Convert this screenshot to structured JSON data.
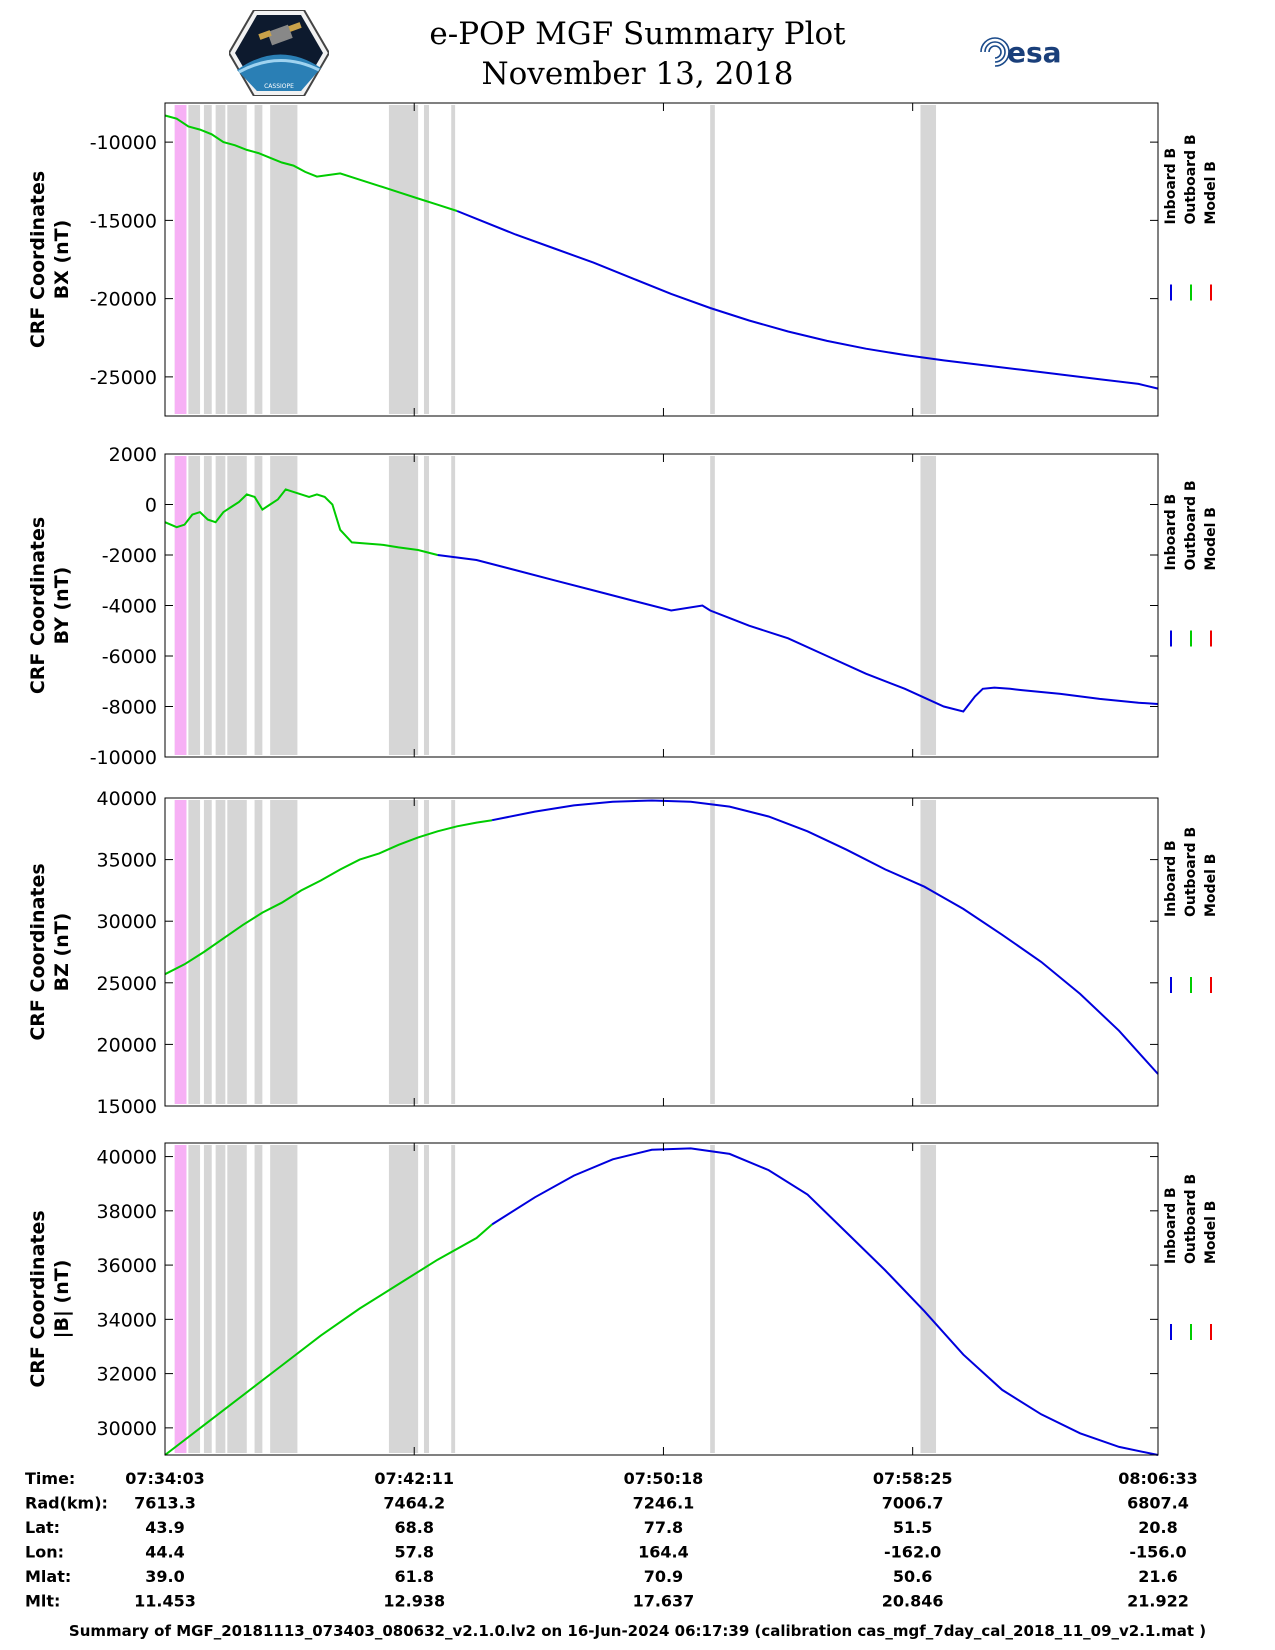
{
  "header": {
    "title": "e-POP MGF Summary Plot",
    "date": "November 13, 2018",
    "logo_left_text": "CASSIOPE",
    "logo_right_text": "esa"
  },
  "colors": {
    "inboard": "#0000dd",
    "outboard": "#00cc00",
    "model": "#ee0000",
    "gap": "#d6d6d6",
    "highlight": "#f7b0f5"
  },
  "chart_data": [
    {
      "type": "line",
      "title": "",
      "ylabel_line1": "CRF Coordinates",
      "ylabel_line2": "BX (nT)",
      "ylim": [
        -27500,
        -7500
      ],
      "yticks": [
        -25000,
        -20000,
        -15000,
        -10000
      ],
      "ytick_labels": [
        "-25000",
        "-20000",
        "-15000",
        "-10000"
      ],
      "legend": [
        "Inboard B",
        "Outboard B",
        "Model B"
      ],
      "series": [
        {
          "name": "Outboard B",
          "color": "outboard",
          "x": [
            0,
            0.3,
            0.6,
            0.9,
            1.2,
            1.5,
            1.8,
            2.1,
            2.4,
            2.7,
            3.0,
            3.3,
            3.6,
            3.9,
            4.2,
            4.5,
            5.0,
            5.5,
            6.0,
            6.5,
            7.0,
            7.5
          ],
          "y": [
            -8300,
            -8500,
            -9000,
            -9200,
            -9500,
            -10000,
            -10200,
            -10500,
            -10700,
            -11000,
            -11300,
            -11500,
            -11900,
            -12200,
            -12100,
            -12000,
            -12400,
            -12800,
            -13200,
            -13600,
            -14000,
            -14400
          ]
        },
        {
          "name": "Inboard B",
          "color": "inboard",
          "x": [
            7.5,
            8.0,
            9.0,
            10.0,
            11.0,
            12.0,
            13.0,
            14.0,
            15.0,
            16.0,
            17.0,
            18.0,
            19.0,
            20.0,
            21.0,
            22.0,
            23.0,
            24.0,
            25.0,
            25.5
          ],
          "y": [
            -14400,
            -14900,
            -15900,
            -16800,
            -17700,
            -18700,
            -19700,
            -20600,
            -21400,
            -22100,
            -22700,
            -23200,
            -23600,
            -23950,
            -24250,
            -24550,
            -24850,
            -25150,
            -25450,
            -25750
          ]
        }
      ]
    },
    {
      "type": "line",
      "title": "",
      "ylabel_line1": "CRF Coordinates",
      "ylabel_line2": "BY (nT)",
      "ylim": [
        -10000,
        2000
      ],
      "yticks": [
        -10000,
        -8000,
        -6000,
        -4000,
        -2000,
        0,
        2000
      ],
      "ytick_labels": [
        "-10000",
        "-8000",
        "-6000",
        "-4000",
        "-2000",
        "0",
        "2000"
      ],
      "legend": [
        "Inboard B",
        "Outboard B",
        "Model B"
      ],
      "series": [
        {
          "name": "Outboard B",
          "color": "outboard",
          "x": [
            0,
            0.3,
            0.5,
            0.7,
            0.9,
            1.1,
            1.3,
            1.5,
            1.7,
            1.9,
            2.1,
            2.3,
            2.5,
            2.7,
            2.9,
            3.1,
            3.3,
            3.5,
            3.7,
            3.9,
            4.1,
            4.3,
            4.5,
            4.8,
            5.2,
            5.6,
            6.0,
            6.5,
            7.0
          ],
          "y": [
            -700,
            -900,
            -800,
            -400,
            -300,
            -600,
            -700,
            -300,
            -100,
            100,
            400,
            300,
            -200,
            0,
            200,
            600,
            500,
            400,
            300,
            400,
            300,
            0,
            -1000,
            -1500,
            -1550,
            -1600,
            -1700,
            -1800,
            -2000
          ]
        },
        {
          "name": "Inboard B",
          "color": "inboard",
          "x": [
            7.0,
            8.0,
            9.0,
            10.0,
            11.0,
            12.0,
            13.0,
            13.8,
            14.0,
            14.5,
            15.0,
            16.0,
            17.0,
            18.0,
            19.0,
            20.0,
            20.5,
            20.8,
            21.0,
            21.3,
            21.7,
            22.0,
            23.0,
            24.0,
            25.0,
            25.5
          ],
          "y": [
            -2000,
            -2200,
            -2600,
            -3000,
            -3400,
            -3800,
            -4200,
            -4000,
            -4200,
            -4500,
            -4800,
            -5300,
            -6000,
            -6700,
            -7300,
            -8000,
            -8200,
            -7600,
            -7300,
            -7250,
            -7300,
            -7350,
            -7500,
            -7700,
            -7850,
            -7900
          ]
        }
      ]
    },
    {
      "type": "line",
      "title": "",
      "ylabel_line1": "CRF Coordinates",
      "ylabel_line2": "BZ (nT)",
      "ylim": [
        15000,
        40000
      ],
      "yticks": [
        15000,
        20000,
        25000,
        30000,
        35000,
        40000
      ],
      "ytick_labels": [
        "15000",
        "20000",
        "25000",
        "30000",
        "35000",
        "40000"
      ],
      "legend": [
        "Inboard B",
        "Outboard B",
        "Model B"
      ],
      "series": [
        {
          "name": "Outboard B",
          "color": "outboard",
          "x": [
            0,
            0.5,
            1.0,
            1.5,
            2.0,
            2.5,
            3.0,
            3.5,
            4.0,
            4.5,
            5.0,
            5.5,
            6.0,
            6.5,
            7.0,
            7.5,
            8.0,
            8.4
          ],
          "y": [
            25700,
            26500,
            27500,
            28600,
            29700,
            30700,
            31500,
            32500,
            33300,
            34200,
            35000,
            35500,
            36200,
            36800,
            37300,
            37700,
            38000,
            38200
          ]
        },
        {
          "name": "Inboard B",
          "color": "inboard",
          "x": [
            8.4,
            9.5,
            10.5,
            11.5,
            12.5,
            13.5,
            14.5,
            15.5,
            16.5,
            17.5,
            18.5,
            19.5,
            20.5,
            21.5,
            22.5,
            23.5,
            24.5,
            25.5
          ],
          "y": [
            38200,
            38900,
            39400,
            39700,
            39800,
            39700,
            39300,
            38500,
            37300,
            35800,
            34200,
            32800,
            31000,
            28900,
            26700,
            24100,
            21100,
            17600
          ]
        }
      ]
    },
    {
      "type": "line",
      "title": "",
      "ylabel_line1": "CRF Coordinates",
      "ylabel_line2": "|B| (nT)",
      "ylim": [
        29000,
        40500
      ],
      "yticks": [
        30000,
        32000,
        34000,
        36000,
        38000,
        40000
      ],
      "ytick_labels": [
        "30000",
        "32000",
        "34000",
        "36000",
        "38000",
        "40000"
      ],
      "legend": [
        "Inboard B",
        "Outboard B",
        "Model B"
      ],
      "series": [
        {
          "name": "Outboard B",
          "color": "outboard",
          "x": [
            0,
            1.0,
            2.0,
            3.0,
            4.0,
            5.0,
            6.0,
            7.0,
            8.0,
            8.4
          ],
          "y": [
            29000,
            30100,
            31200,
            32300,
            33400,
            34400,
            35300,
            36200,
            37000,
            37500
          ]
        },
        {
          "name": "Inboard B",
          "color": "inboard",
          "x": [
            8.4,
            9.5,
            10.5,
            11.5,
            12.5,
            13.5,
            14.5,
            15.5,
            16.5,
            17.5,
            18.5,
            19.5,
            20.5,
            21.5,
            22.5,
            23.5,
            24.5,
            25.5
          ],
          "y": [
            37500,
            38500,
            39300,
            39900,
            40250,
            40300,
            40100,
            39500,
            38600,
            37200,
            35800,
            34300,
            32700,
            31400,
            30500,
            29800,
            29300,
            29000
          ]
        }
      ]
    }
  ],
  "x_axis": {
    "xlim": [
      0,
      25.5
    ],
    "tick_minutes": [
      0,
      6.4,
      12.8,
      19.2,
      25.5
    ],
    "gaps": [
      [
        0.25,
        0.55
      ],
      [
        0.6,
        0.9
      ],
      [
        1.0,
        1.2
      ],
      [
        1.3,
        1.55
      ],
      [
        1.6,
        2.1
      ],
      [
        2.3,
        2.5
      ],
      [
        2.7,
        3.4
      ],
      [
        5.75,
        6.5
      ],
      [
        6.65,
        6.78
      ],
      [
        7.35,
        7.45
      ],
      [
        14.0,
        14.12
      ],
      [
        19.4,
        19.8
      ]
    ],
    "highlight": [
      [
        0.25,
        0.55
      ]
    ]
  },
  "info_table": {
    "row_labels": [
      "Time:",
      "Rad(km):",
      "Lat:",
      "Lon:",
      "Mlat:",
      "Mlt:"
    ],
    "columns": [
      [
        "07:34:03",
        "7613.3",
        "43.9",
        "44.4",
        "39.0",
        "11.453"
      ],
      [
        "07:42:11",
        "7464.2",
        "68.8",
        "57.8",
        "61.8",
        "12.938"
      ],
      [
        "07:50:18",
        "7246.1",
        "77.8",
        "164.4",
        "70.9",
        "17.637"
      ],
      [
        "07:58:25",
        "7006.7",
        "51.5",
        "-162.0",
        "50.6",
        "20.846"
      ],
      [
        "08:06:33",
        "6807.4",
        "20.8",
        "-156.0",
        "21.6",
        "21.922"
      ]
    ]
  },
  "footer": "Summary of MGF_20181113_073403_080632_v2.1.0.lv2 on 16-Jun-2024 06:17:39 (calibration cas_mgf_7day_cal_2018_11_09_v2.1.mat )"
}
